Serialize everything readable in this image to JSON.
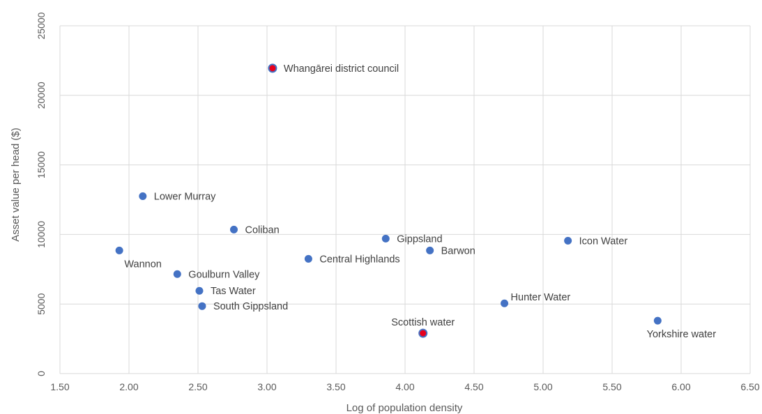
{
  "chart_data": {
    "type": "scatter",
    "title": "",
    "xlabel": "Log of population density",
    "ylabel": "Asset value per head ($)",
    "xlim": [
      1.5,
      6.5
    ],
    "ylim": [
      0,
      25000
    ],
    "x_ticks": [
      "1.50",
      "2.00",
      "2.50",
      "3.00",
      "3.50",
      "4.00",
      "4.50",
      "5.00",
      "5.50",
      "6.00",
      "6.50"
    ],
    "y_ticks": [
      "0",
      "5000",
      "10000",
      "15000",
      "20000",
      "25000"
    ],
    "grid": true,
    "legend": "none",
    "colors": {
      "default_marker": "#4472C4",
      "highlight_marker": "#E8001C",
      "highlight_label": "#E8001C",
      "default_label": "#404040",
      "grid": "#D9D9D9"
    },
    "points": [
      {
        "label": "Whangārei district council",
        "x": 3.04,
        "y": 21950,
        "highlight": true,
        "label_pos": "right"
      },
      {
        "label": "Lower Murray",
        "x": 2.1,
        "y": 12750,
        "highlight": false,
        "label_pos": "right"
      },
      {
        "label": "Coliban",
        "x": 2.76,
        "y": 10350,
        "highlight": false,
        "label_pos": "right"
      },
      {
        "label": "Wannon",
        "x": 1.93,
        "y": 8850,
        "highlight": false,
        "label_pos": "below"
      },
      {
        "label": "Gippsland",
        "x": 3.86,
        "y": 9700,
        "highlight": false,
        "label_pos": "right"
      },
      {
        "label": "Barwon",
        "x": 4.18,
        "y": 8850,
        "highlight": false,
        "label_pos": "right"
      },
      {
        "label": "Icon Water",
        "x": 5.18,
        "y": 9550,
        "highlight": false,
        "label_pos": "right"
      },
      {
        "label": "Central Highlands",
        "x": 3.3,
        "y": 8250,
        "highlight": false,
        "label_pos": "right"
      },
      {
        "label": "Goulburn Valley",
        "x": 2.35,
        "y": 7150,
        "highlight": false,
        "label_pos": "right"
      },
      {
        "label": "Tas Water",
        "x": 2.51,
        "y": 5950,
        "highlight": false,
        "label_pos": "right"
      },
      {
        "label": "South Gippsland",
        "x": 2.53,
        "y": 4850,
        "highlight": false,
        "label_pos": "right"
      },
      {
        "label": "Hunter Water",
        "x": 4.72,
        "y": 5050,
        "highlight": false,
        "label_pos": "above-right"
      },
      {
        "label": "Yorkshire water",
        "x": 5.83,
        "y": 3800,
        "highlight": false,
        "label_pos": "below"
      },
      {
        "label": "Scottish water",
        "x": 4.13,
        "y": 2900,
        "highlight": true,
        "label_pos": "above"
      }
    ]
  }
}
